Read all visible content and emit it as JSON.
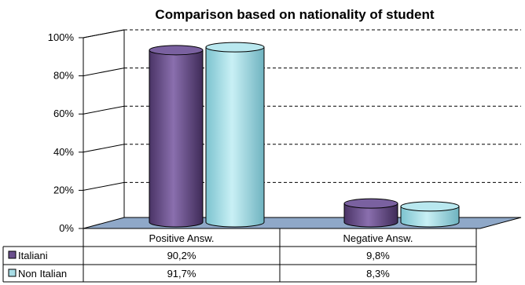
{
  "chart_data": {
    "type": "bar",
    "style": "3d-cylinder",
    "title": "Comparison based on nationality of student",
    "categories": [
      "Positive Answ.",
      "Negative Answ."
    ],
    "series": [
      {
        "name": "Italiani",
        "values": [
          90.2,
          9.8
        ],
        "color": "#6a4f8c"
      },
      {
        "name": "Non Italian",
        "values": [
          91.7,
          8.3
        ],
        "color": "#a8dde6"
      }
    ],
    "data_labels": [
      [
        "90,2%",
        "9,8%"
      ],
      [
        "91,7%",
        "8,3%"
      ]
    ],
    "yticks": [
      "0%",
      "20%",
      "40%",
      "60%",
      "80%",
      "100%"
    ],
    "ylim": [
      0,
      100
    ],
    "grid": "dashed horizontal",
    "legend": "data table below chart",
    "floor_color": "#8fa8c8"
  }
}
